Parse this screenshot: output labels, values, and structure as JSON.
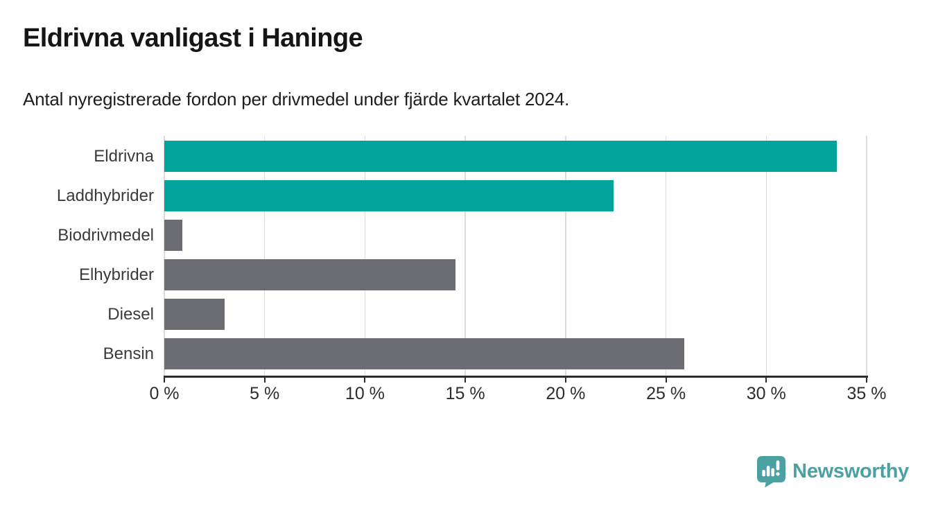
{
  "title": "Eldrivna vanligast i Haninge",
  "subtitle": "Antal nyregistrerade fordon per drivmedel under fjärde kvartalet 2024.",
  "chart_data": {
    "type": "bar",
    "orientation": "horizontal",
    "title": "Eldrivna vanligast i Haninge",
    "subtitle": "Antal nyregistrerade fordon per drivmedel under fjärde kvartalet 2024.",
    "categories": [
      "Eldrivna",
      "Laddhybrider",
      "Biodrivmedel",
      "Elhybrider",
      "Diesel",
      "Bensin"
    ],
    "values": [
      33.5,
      22.4,
      0.9,
      14.5,
      3.0,
      25.9
    ],
    "unit": "%",
    "xlim": [
      0,
      35
    ],
    "x_ticks": [
      0,
      5,
      10,
      15,
      20,
      25,
      30,
      35
    ],
    "x_tick_labels": [
      "0 %",
      "5 %",
      "10 %",
      "15 %",
      "20 %",
      "25 %",
      "30 %",
      "35 %"
    ],
    "grid": "vertical",
    "legend": "none",
    "bar_colors": [
      "#00a49a",
      "#00a49a",
      "#6c6c73",
      "#6c6c73",
      "#6c6c73",
      "#6c6c73"
    ],
    "highlight_color": "#00a49a",
    "default_color": "#6c6c73"
  },
  "branding": {
    "logo_text": "Newsworthy",
    "logo_color": "#4ba0a2",
    "logo_icon": "newsworthy-pin-barchart-icon"
  }
}
